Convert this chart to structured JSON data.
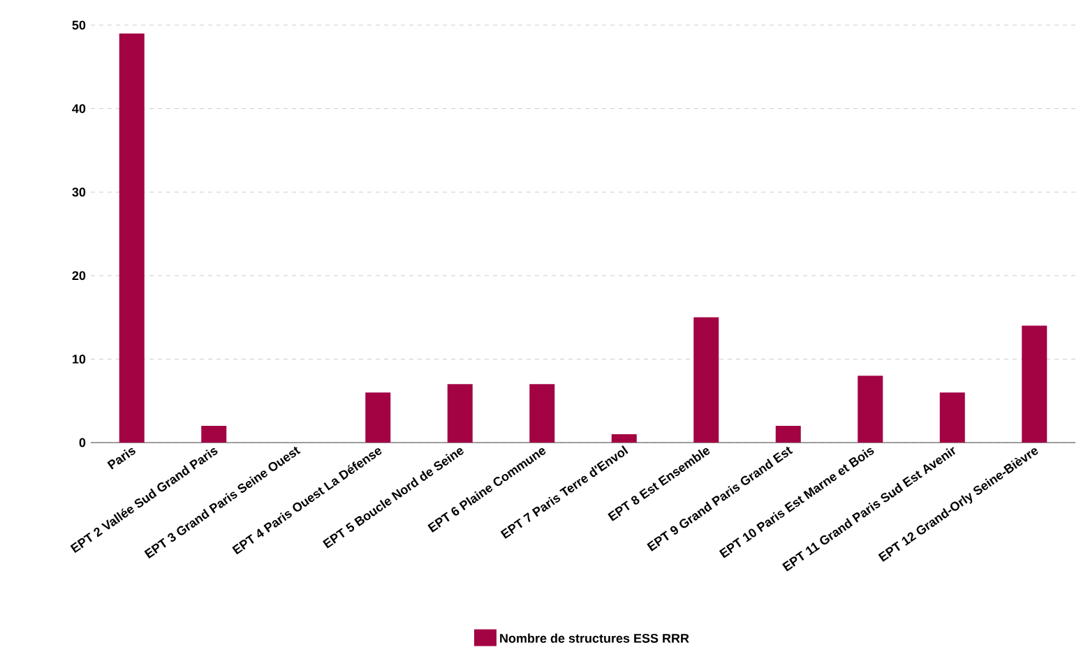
{
  "chart_data": {
    "type": "bar",
    "categories": [
      "Paris",
      "EPT 2 Vallée Sud Grand Paris",
      "EPT 3 Grand Paris Seine Ouest",
      "EPT 4 Paris Ouest La Défense",
      "EPT 5 Boucle Nord de Seine",
      "EPT 6 Plaine Commune",
      "EPT 7 Paris Terre d'Envol",
      "EPT 8 Est Ensemble",
      "EPT 9 Grand Paris Grand Est",
      "EPT 10 Paris Est Marne et Bois",
      "EPT 11 Grand Paris Sud Est Avenir",
      "EPT 12 Grand-Orly Seine-Bièvre"
    ],
    "series": [
      {
        "name": "Nombre de structures ESS RRR",
        "color": "#a30343",
        "values": [
          49,
          2,
          0,
          6,
          7,
          7,
          1,
          15,
          2,
          8,
          6,
          14
        ]
      }
    ],
    "ylim": [
      0,
      50
    ],
    "yticks": [
      0,
      10,
      20,
      30,
      40,
      50
    ],
    "grid": "y",
    "legend": "bottom"
  }
}
